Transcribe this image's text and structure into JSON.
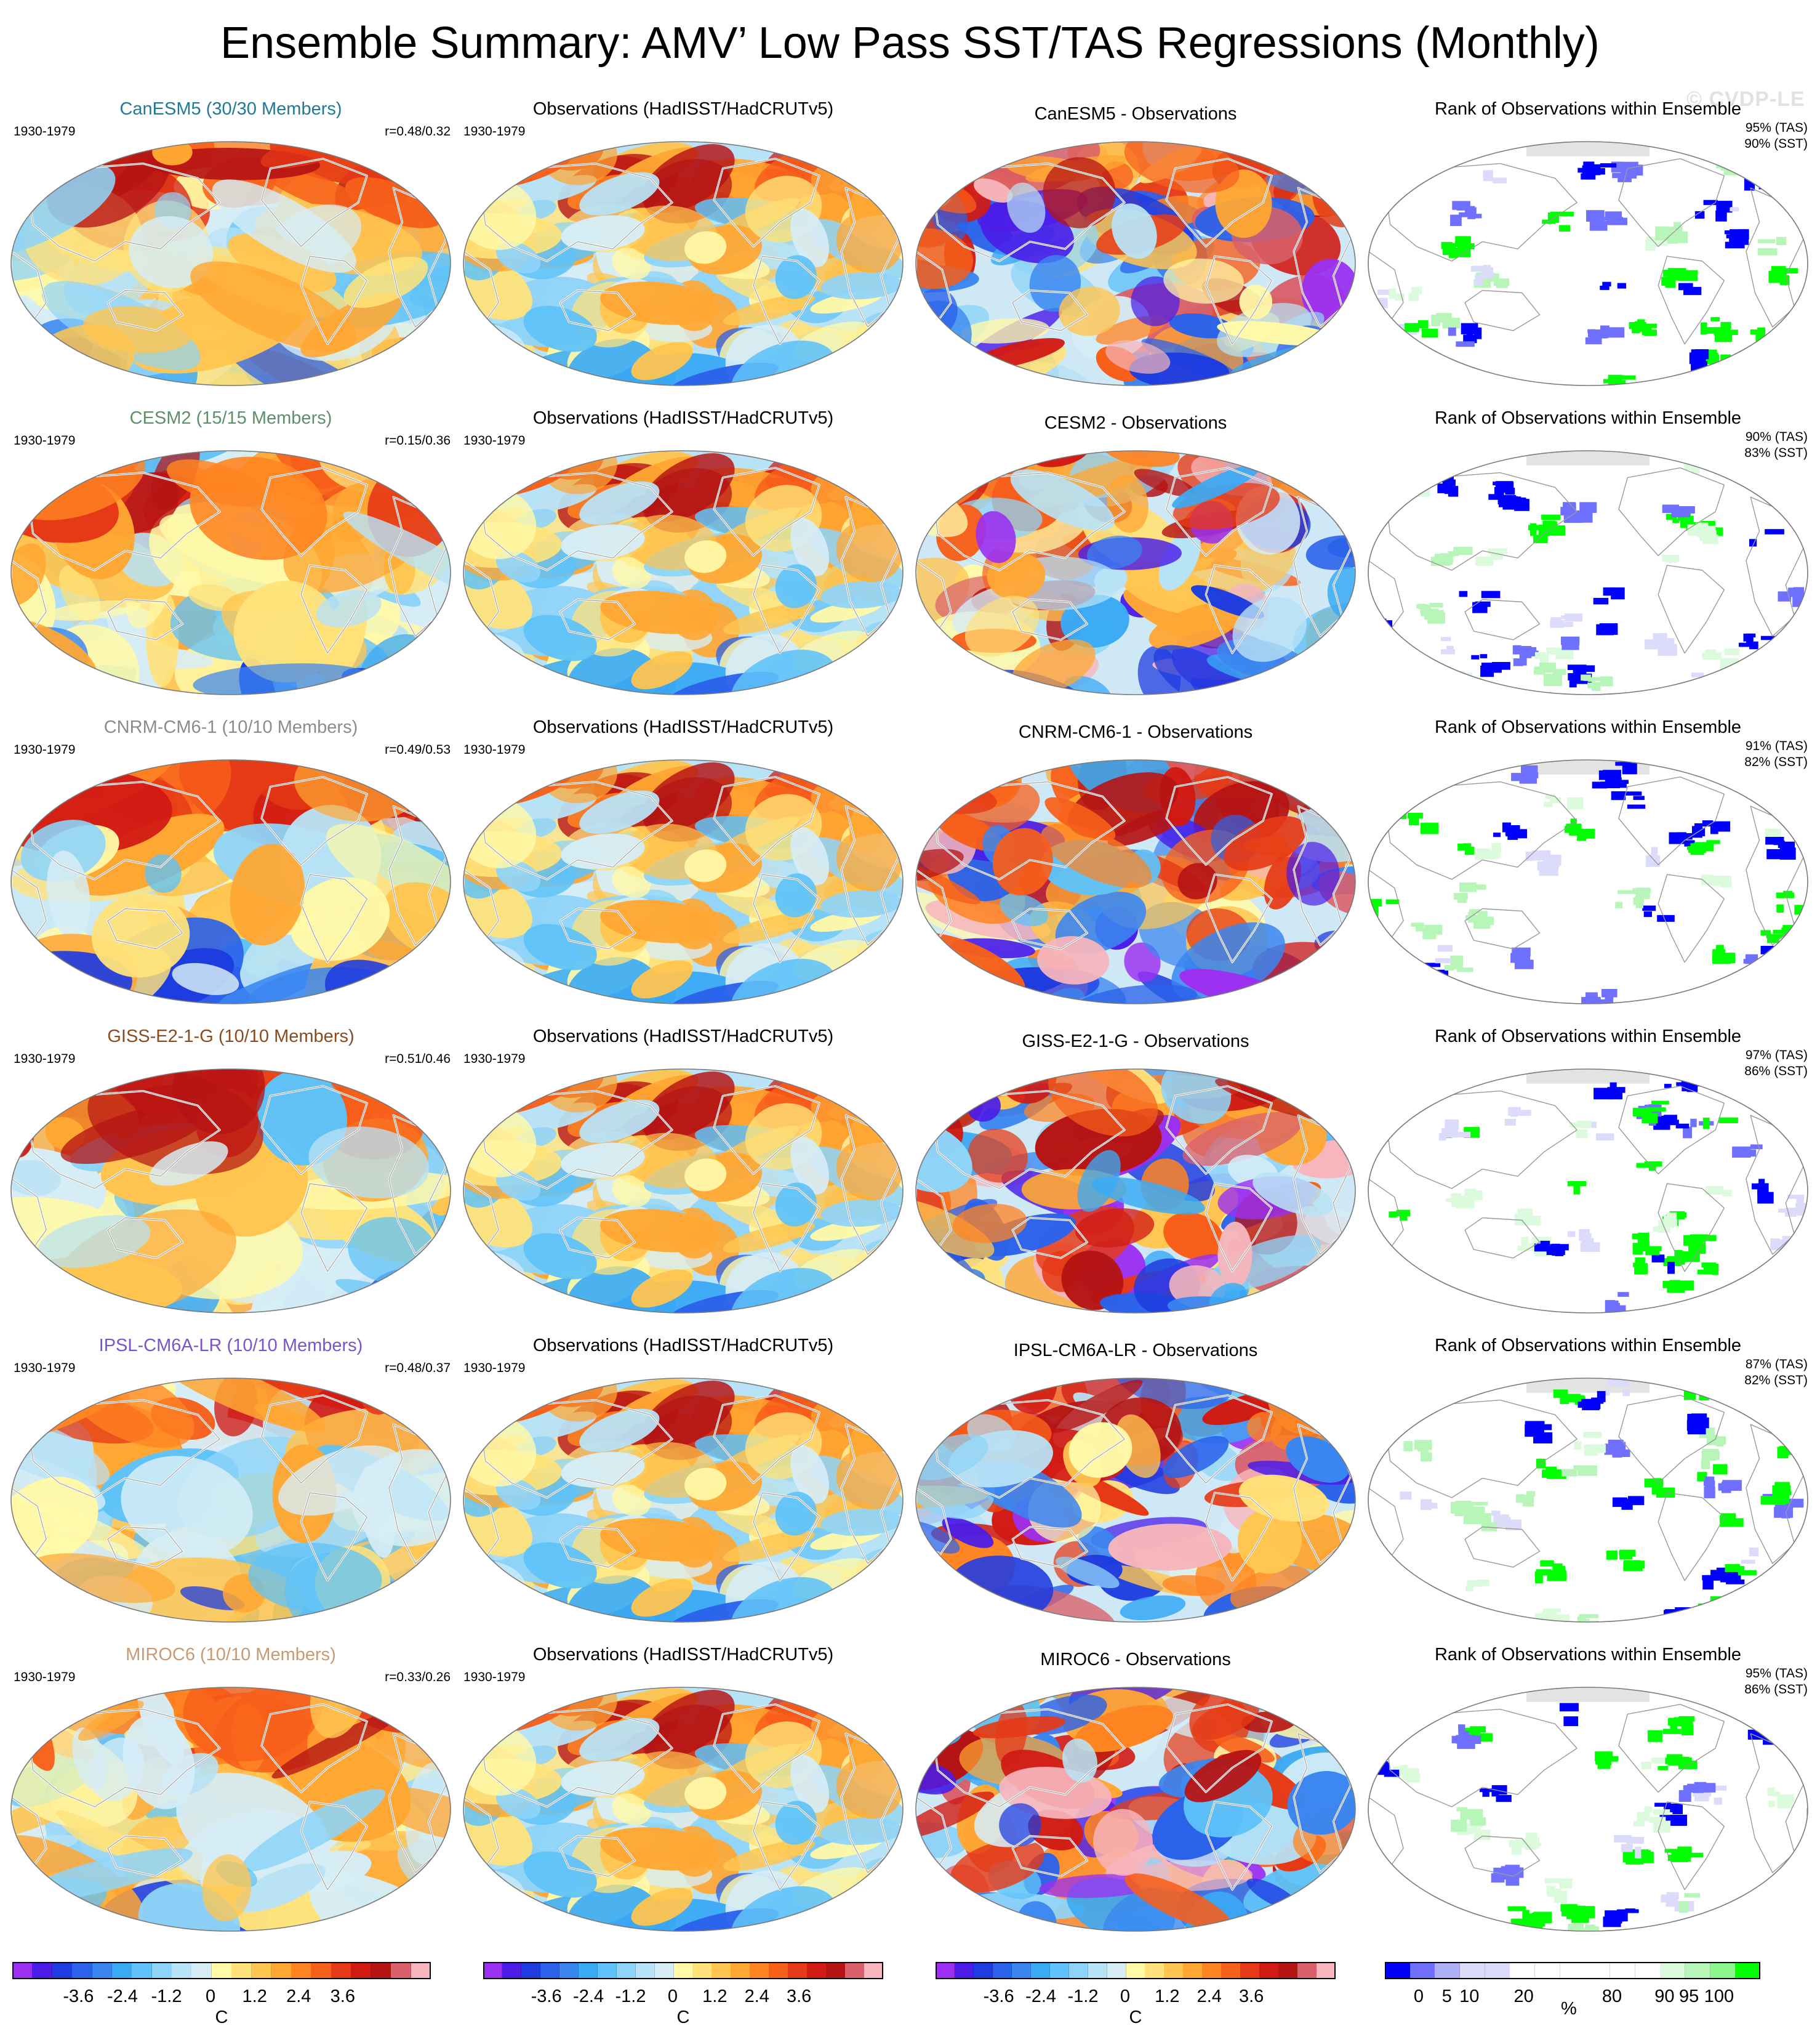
{
  "title": "Ensemble Summary: AMV’ Low Pass SST/TAS Regressions (Monthly)",
  "watermark": "© CVDP-LE",
  "period_label": "1930-1979",
  "obs_title": "Observations (HadISST/HadCRUTv5)",
  "rank_title": "Rank of Observations within Ensemble",
  "diff_suffix": " - Observations",
  "rows": [
    {
      "model": "CanESM5",
      "members": "CanESM5 (30/30 Members)",
      "color": "#1f7a96",
      "corr": "r=0.48/0.32",
      "tas": "95% (TAS)",
      "sst": "90% (SST)",
      "seed": 11
    },
    {
      "model": "CESM2",
      "members": "CESM2 (15/15 Members)",
      "color": "#5e8f6a",
      "corr": "r=0.15/0.36",
      "tas": "90% (TAS)",
      "sst": "83% (SST)",
      "seed": 23
    },
    {
      "model": "CNRM-CM6-1",
      "members": "CNRM-CM6-1 (10/10 Members)",
      "color": "#8c8c8c",
      "corr": "r=0.49/0.53",
      "tas": "91% (TAS)",
      "sst": "82% (SST)",
      "seed": 37
    },
    {
      "model": "GISS-E2-1-G",
      "members": "GISS-E2-1-G (10/10 Members)",
      "color": "#8a4b1e",
      "corr": "r=0.51/0.46",
      "tas": "97% (TAS)",
      "sst": "86% (SST)",
      "seed": 41
    },
    {
      "model": "IPSL-CM6A-LR",
      "members": "IPSL-CM6A-LR (10/10 Members)",
      "color": "#7a55c8",
      "corr": "r=0.48/0.37",
      "tas": "87% (TAS)",
      "sst": "82% (SST)",
      "seed": 53
    },
    {
      "model": "MIROC6",
      "members": "MIROC6 (10/10 Members)",
      "color": "#c89a72",
      "corr": "r=0.33/0.26",
      "tas": "95% (TAS)",
      "sst": "86% (SST)",
      "seed": 67
    }
  ],
  "colorbars": {
    "temperature": {
      "unit": "C",
      "ticks": [
        "-3.6",
        "-2.4",
        "-1.2",
        "0",
        "1.2",
        "2.4",
        "3.6"
      ],
      "colors": [
        "#9b30f0",
        "#4a1de8",
        "#1e3ce0",
        "#2b62ea",
        "#3a86f0",
        "#3aaaf5",
        "#5fc2f8",
        "#8fd4f8",
        "#b8e2f5",
        "#d6edf6",
        "#fff9a8",
        "#ffe27a",
        "#ffc550",
        "#ffa733",
        "#ff8422",
        "#f75f1a",
        "#e63a16",
        "#d11a14",
        "#b51414",
        "#d9606a",
        "#f6b6bc"
      ]
    },
    "rank": {
      "unit": "%",
      "ticks": [
        "0",
        "5",
        "10",
        "20",
        "80",
        "90",
        "95",
        "100"
      ],
      "colors": [
        "#0000ff",
        "#7070ff",
        "#b0b0f5",
        "#dcdcfa",
        "#dcdcfa",
        "#ffffff",
        "#ffffff",
        "#ffffff",
        "#ffffff",
        "#ffffff",
        "#ffffff",
        "#dcfadc",
        "#b8f5b8",
        "#8cf58c",
        "#00ff00"
      ]
    }
  }
}
